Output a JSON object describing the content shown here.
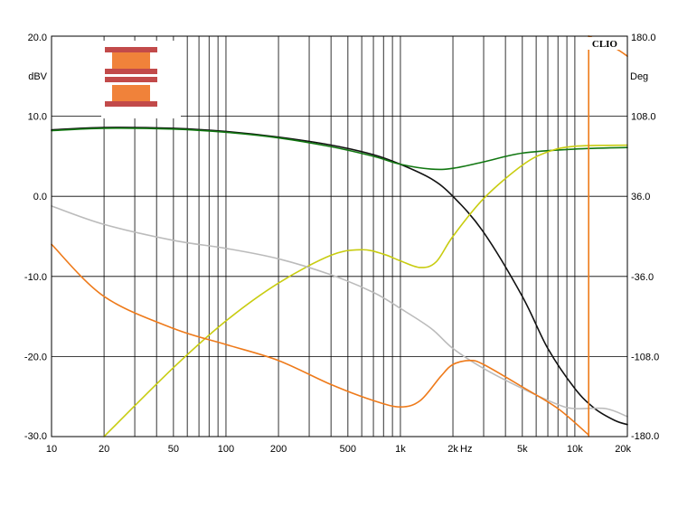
{
  "chart_data": {
    "type": "line",
    "left_axis": {
      "unit": "dBV",
      "ylim": [
        -30,
        20
      ],
      "ticks": [
        "20.0",
        "10.0",
        "0.0",
        "-10.0",
        "-20.0",
        "-30.0"
      ],
      "tick_values": [
        20,
        10,
        0,
        -10,
        -20,
        -30
      ]
    },
    "right_axis": {
      "unit": "Deg",
      "ylim": [
        -180,
        180
      ],
      "ticks": [
        "180.0",
        "108.0",
        "36.0",
        "-36.0",
        "-108.0",
        "-180.0"
      ],
      "tick_values": [
        180,
        108,
        36,
        -36,
        -108,
        -180
      ]
    },
    "x_axis": {
      "scale": "log",
      "xlim": [
        10,
        20000
      ],
      "unit": "Hz",
      "ticks": [
        "10",
        "20",
        "50",
        "100",
        "200",
        "500",
        "1k",
        "2k",
        "5k",
        "10k",
        "20k"
      ],
      "tick_values": [
        10,
        20,
        50,
        100,
        200,
        500,
        1000,
        2000,
        5000,
        10000,
        20000
      ]
    },
    "brand": "CLIO",
    "grid": true,
    "series": [
      {
        "color": "#111111",
        "axis": "left",
        "points": [
          [
            10,
            8.3
          ],
          [
            20,
            8.6
          ],
          [
            50,
            8.5
          ],
          [
            100,
            8.1
          ],
          [
            200,
            7.4
          ],
          [
            400,
            6.4
          ],
          [
            700,
            5.2
          ],
          [
            1000,
            4.0
          ],
          [
            1500,
            2.2
          ],
          [
            2000,
            0.0
          ],
          [
            3000,
            -4.5
          ],
          [
            5000,
            -12.5
          ],
          [
            7000,
            -19.0
          ],
          [
            10000,
            -24.0
          ],
          [
            13000,
            -26.5
          ],
          [
            17000,
            -28.0
          ],
          [
            20000,
            -28.5
          ]
        ]
      },
      {
        "color": "#117711",
        "axis": "left",
        "points": [
          [
            10,
            8.2
          ],
          [
            20,
            8.5
          ],
          [
            50,
            8.4
          ],
          [
            100,
            8.0
          ],
          [
            200,
            7.3
          ],
          [
            400,
            6.2
          ],
          [
            700,
            5.0
          ],
          [
            1000,
            4.0
          ],
          [
            1500,
            3.4
          ],
          [
            2000,
            3.5
          ],
          [
            3000,
            4.3
          ],
          [
            5000,
            5.4
          ],
          [
            10000,
            5.9
          ],
          [
            20000,
            6.1
          ]
        ]
      },
      {
        "color": "#c8cc10",
        "axis": "right",
        "points": [
          [
            20,
            -180.0
          ],
          [
            50,
            -118.0
          ],
          [
            100,
            -76.0
          ],
          [
            200,
            -42.0
          ],
          [
            400,
            -17.0
          ],
          [
            600,
            -12.0
          ],
          [
            800,
            -16.0
          ],
          [
            1000,
            -22.0
          ],
          [
            1300,
            -28.0
          ],
          [
            1600,
            -23.0
          ],
          [
            2000,
            0.0
          ],
          [
            3000,
            34.0
          ],
          [
            5000,
            64.0
          ],
          [
            7000,
            76.0
          ],
          [
            10000,
            81.0
          ],
          [
            20000,
            82.0
          ]
        ]
      },
      {
        "color": "#bbbbbb",
        "axis": "left",
        "points": [
          [
            10,
            -1.2
          ],
          [
            20,
            -3.5
          ],
          [
            50,
            -5.5
          ],
          [
            100,
            -6.5
          ],
          [
            200,
            -7.8
          ],
          [
            400,
            -9.8
          ],
          [
            700,
            -12.0
          ],
          [
            1000,
            -14.0
          ],
          [
            1500,
            -16.5
          ],
          [
            2000,
            -19.0
          ],
          [
            3000,
            -21.5
          ],
          [
            5000,
            -24.0
          ],
          [
            8000,
            -26.0
          ],
          [
            10000,
            -26.5
          ],
          [
            15000,
            -26.5
          ],
          [
            20000,
            -27.5
          ]
        ]
      },
      {
        "color": "#ee7a1a",
        "axis": "left",
        "points": [
          [
            10,
            -6.0
          ],
          [
            20,
            -12.5
          ],
          [
            50,
            -16.5
          ],
          [
            100,
            -18.5
          ],
          [
            200,
            -20.5
          ],
          [
            400,
            -23.5
          ],
          [
            700,
            -25.5
          ],
          [
            1000,
            -26.3
          ],
          [
            1300,
            -25.5
          ],
          [
            1700,
            -22.5
          ],
          [
            2000,
            -21.0
          ],
          [
            2500,
            -20.5
          ],
          [
            3000,
            -21.0
          ],
          [
            5000,
            -23.8
          ],
          [
            8000,
            -26.5
          ],
          [
            12000,
            -29.8
          ]
        ]
      },
      {
        "color": "#ee7a1a",
        "axis": "left",
        "points": [
          [
            12000,
            -30.0
          ],
          [
            12000,
            20.0
          ]
        ]
      },
      {
        "color": "#ee7a1a",
        "axis": "left",
        "points": [
          [
            12000,
            20.0
          ],
          [
            17000,
            18.5
          ],
          [
            20000,
            17.5
          ]
        ]
      }
    ]
  }
}
